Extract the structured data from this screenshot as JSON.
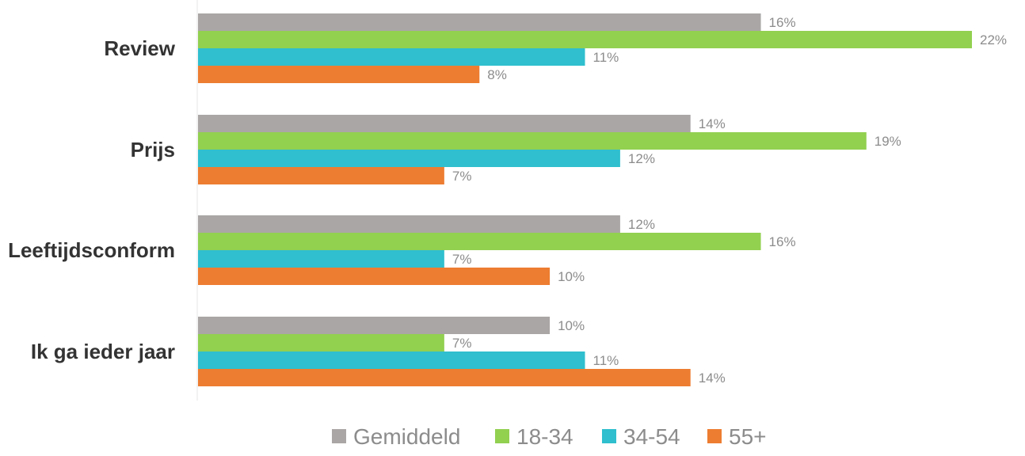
{
  "chart_data": {
    "type": "bar",
    "orientation": "horizontal",
    "categories": [
      "Review",
      "Prijs",
      "Leeftijdsconform",
      "Ik ga ieder jaar"
    ],
    "series": [
      {
        "name": "Gemiddeld",
        "color": "#aaa6a5",
        "values": [
          16,
          14,
          12,
          10
        ],
        "labels": [
          "16%",
          "14%",
          "12%",
          "10%"
        ]
      },
      {
        "name": "18-34",
        "color": "#92d050",
        "values": [
          22,
          19,
          16,
          7
        ],
        "labels": [
          "22%",
          "19%",
          "16%",
          "7%"
        ]
      },
      {
        "name": "34-54",
        "color": "#2fbfce",
        "values": [
          11,
          12,
          7,
          11
        ],
        "labels": [
          "11%",
          "12%",
          "7%",
          "11%"
        ]
      },
      {
        "name": "55+",
        "color": "#ed7d31",
        "values": [
          8,
          7,
          10,
          14
        ],
        "labels": [
          "8%",
          "7%",
          "10%",
          "14%"
        ]
      }
    ],
    "xlim": [
      0,
      22
    ],
    "grid": false,
    "legend_position": "bottom",
    "value_labels": true
  }
}
